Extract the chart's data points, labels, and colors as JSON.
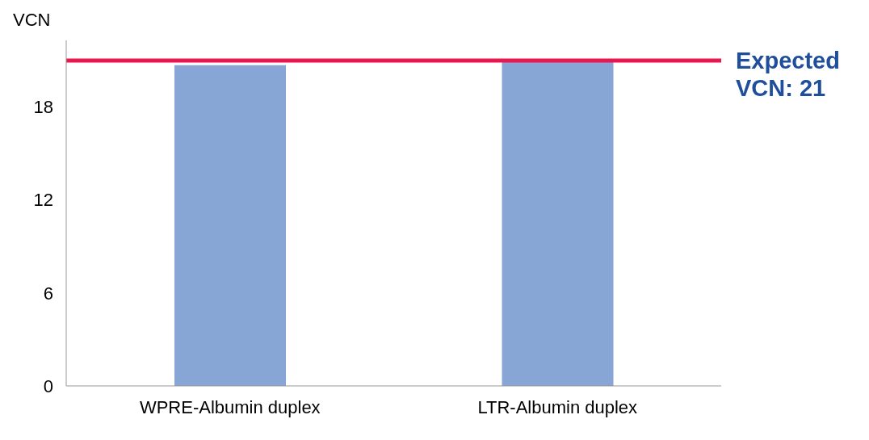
{
  "chart_data": {
    "type": "bar",
    "ylabel": "VCN",
    "categories": [
      "WPRE-Albumin duplex",
      "LTR-Albumin duplex"
    ],
    "values": [
      20.7,
      20.9
    ],
    "color": "#87a6d6",
    "ylim": [
      0,
      22.3
    ],
    "yticks": [
      0,
      6,
      12,
      18
    ],
    "grid": false,
    "legend": false,
    "ref_lines": [
      {
        "axis": "y",
        "value": 21,
        "label": "Expected VCN: 21",
        "color": "#e8174f"
      }
    ]
  }
}
